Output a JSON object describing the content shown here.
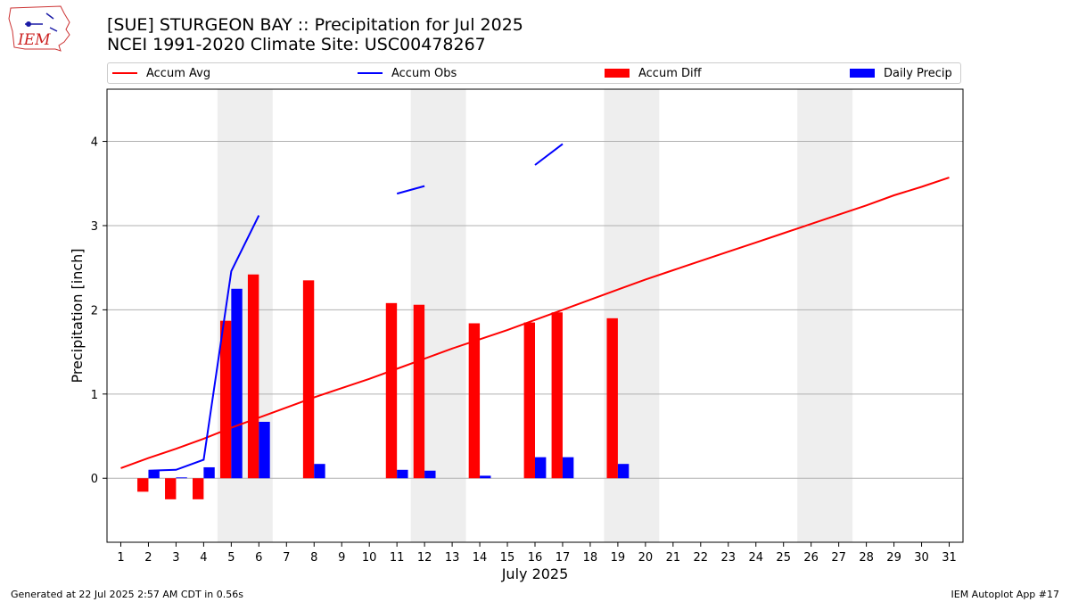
{
  "header": {
    "title_line1": "[SUE] STURGEON BAY :: Precipitation for Jul 2025",
    "title_line2": "NCEI 1991-2020 Climate Site: USC00478267",
    "logo_text": "IEM"
  },
  "footer": {
    "left": "Generated at 22 Jul 2025 2:57 AM CDT in 0.56s",
    "right": "IEM Autoplot App #17"
  },
  "colors": {
    "avg": "#ff0000",
    "obs": "#0000ff",
    "diff": "#ff0000",
    "daily": "#0000ff",
    "weekend": "#eeeeee",
    "grid": "#b0b0b0"
  },
  "chart_data": {
    "type": "bar",
    "xlabel": "July 2025",
    "ylabel": "Precipitation [inch]",
    "xlim": [
      0.5,
      31.5
    ],
    "ylim": [
      -0.76,
      4.62
    ],
    "yticks": [
      0,
      1,
      2,
      3,
      4
    ],
    "grid": true,
    "legend_placement": "top",
    "weekend_bands": [
      [
        4.5,
        6.5
      ],
      [
        11.5,
        13.5
      ],
      [
        18.5,
        20.5
      ],
      [
        25.5,
        27.5
      ]
    ],
    "days": [
      1,
      2,
      3,
      4,
      5,
      6,
      7,
      8,
      9,
      10,
      11,
      12,
      13,
      14,
      15,
      16,
      17,
      18,
      19,
      20,
      21,
      22,
      23,
      24,
      25,
      26,
      27,
      28,
      29,
      30,
      31
    ],
    "series": [
      {
        "name": "Accum Avg",
        "kind": "line",
        "values": [
          0.12,
          0.24,
          0.35,
          0.47,
          0.6,
          0.72,
          0.84,
          0.96,
          1.07,
          1.18,
          1.3,
          1.42,
          1.54,
          1.65,
          1.76,
          1.88,
          2.0,
          2.12,
          2.24,
          2.36,
          2.47,
          2.58,
          2.69,
          2.8,
          2.91,
          3.02,
          3.13,
          3.24,
          3.36,
          3.46,
          3.57
        ]
      },
      {
        "name": "Accum Obs",
        "kind": "line",
        "values": [
          null,
          0.09,
          0.1,
          0.22,
          2.46,
          3.12,
          null,
          null,
          null,
          null,
          3.38,
          3.47,
          null,
          null,
          null,
          3.72,
          3.97,
          null,
          null,
          null,
          null,
          null,
          null,
          null,
          null,
          null,
          null,
          null,
          null,
          null,
          null
        ]
      },
      {
        "name": "Accum Diff",
        "kind": "bar",
        "values": [
          null,
          -0.16,
          -0.25,
          -0.25,
          1.87,
          2.42,
          null,
          2.35,
          null,
          null,
          2.08,
          2.06,
          null,
          1.84,
          null,
          1.85,
          1.97,
          null,
          1.9,
          null,
          null,
          null,
          null,
          null,
          null,
          null,
          null,
          null,
          null,
          null,
          null
        ]
      },
      {
        "name": "Daily Precip",
        "kind": "bar",
        "values": [
          null,
          0.09,
          0.01,
          0.13,
          2.25,
          0.67,
          null,
          0.17,
          null,
          null,
          0.1,
          0.09,
          null,
          0.03,
          null,
          0.25,
          0.25,
          null,
          0.17,
          null,
          null,
          null,
          null,
          null,
          null,
          null,
          null,
          null,
          null,
          null,
          null
        ]
      }
    ]
  }
}
